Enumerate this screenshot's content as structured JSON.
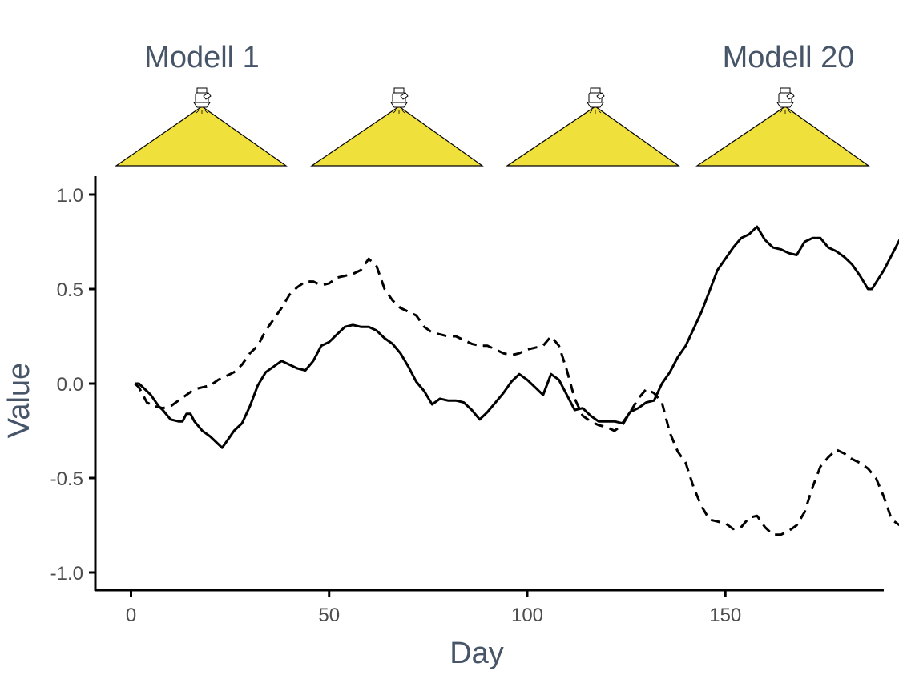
{
  "colors": {
    "axis": "#000000",
    "series": "#000000",
    "lamp_fill": "#F0E03C",
    "text": "#475569",
    "tick": "#4d4d4d"
  },
  "header": {
    "model_labels": [
      "Modell 1",
      "Modell 20"
    ],
    "lamps": [
      {
        "icon": "lamp-icon"
      },
      {
        "icon": "lamp-icon"
      },
      {
        "icon": "lamp-icon"
      },
      {
        "icon": "lamp-icon"
      }
    ]
  },
  "chart_data": {
    "type": "line",
    "title": "",
    "xlabel": "Day",
    "ylabel": "Value",
    "xlim": [
      -9,
      190
    ],
    "ylim": [
      -1.09,
      1.09
    ],
    "xticks": [
      0,
      50,
      100,
      150
    ],
    "xtick_labels": [
      "0",
      "50",
      "100",
      "150"
    ],
    "yticks": [
      -1.0,
      -0.5,
      0.0,
      0.5,
      1.0
    ],
    "ytick_labels": [
      "-1.0",
      "-0.5",
      "0.0",
      "0.5",
      "1.0"
    ],
    "grid": false,
    "series": [
      {
        "name": "solid",
        "style": "solid",
        "points": [
          [
            1,
            0.0
          ],
          [
            2,
            0.0
          ],
          [
            4,
            -0.04
          ],
          [
            5,
            -0.06
          ],
          [
            7,
            -0.12
          ],
          [
            8,
            -0.14
          ],
          [
            10,
            -0.19
          ],
          [
            12,
            -0.2
          ],
          [
            13,
            -0.2
          ],
          [
            14,
            -0.16
          ],
          [
            15,
            -0.16
          ],
          [
            16,
            -0.2
          ],
          [
            18,
            -0.25
          ],
          [
            20,
            -0.28
          ],
          [
            22,
            -0.32
          ],
          [
            23,
            -0.34
          ],
          [
            24,
            -0.31
          ],
          [
            26,
            -0.25
          ],
          [
            28,
            -0.21
          ],
          [
            30,
            -0.12
          ],
          [
            32,
            -0.01
          ],
          [
            34,
            0.06
          ],
          [
            36,
            0.09
          ],
          [
            38,
            0.12
          ],
          [
            40,
            0.1
          ],
          [
            42,
            0.08
          ],
          [
            44,
            0.07
          ],
          [
            46,
            0.12
          ],
          [
            48,
            0.2
          ],
          [
            50,
            0.22
          ],
          [
            52,
            0.26
          ],
          [
            54,
            0.3
          ],
          [
            56,
            0.31
          ],
          [
            58,
            0.3
          ],
          [
            60,
            0.3
          ],
          [
            62,
            0.28
          ],
          [
            64,
            0.24
          ],
          [
            66,
            0.21
          ],
          [
            68,
            0.16
          ],
          [
            70,
            0.09
          ],
          [
            72,
            0.01
          ],
          [
            74,
            -0.04
          ],
          [
            76,
            -0.11
          ],
          [
            78,
            -0.08
          ],
          [
            80,
            -0.09
          ],
          [
            82,
            -0.09
          ],
          [
            84,
            -0.1
          ],
          [
            86,
            -0.14
          ],
          [
            88,
            -0.19
          ],
          [
            90,
            -0.15
          ],
          [
            92,
            -0.1
          ],
          [
            94,
            -0.05
          ],
          [
            96,
            0.01
          ],
          [
            98,
            0.05
          ],
          [
            100,
            0.02
          ],
          [
            102,
            -0.02
          ],
          [
            104,
            -0.06
          ],
          [
            106,
            0.05
          ],
          [
            108,
            0.02
          ],
          [
            110,
            -0.06
          ],
          [
            112,
            -0.14
          ],
          [
            114,
            -0.13
          ],
          [
            116,
            -0.17
          ],
          [
            118,
            -0.2
          ],
          [
            120,
            -0.2
          ],
          [
            122,
            -0.2
          ],
          [
            124,
            -0.21
          ],
          [
            126,
            -0.15
          ],
          [
            128,
            -0.13
          ],
          [
            130,
            -0.1
          ],
          [
            132,
            -0.09
          ],
          [
            134,
            0.0
          ],
          [
            136,
            0.06
          ],
          [
            138,
            0.14
          ],
          [
            140,
            0.2
          ],
          [
            142,
            0.29
          ],
          [
            144,
            0.38
          ],
          [
            146,
            0.49
          ],
          [
            148,
            0.6
          ],
          [
            150,
            0.66
          ],
          [
            152,
            0.72
          ],
          [
            154,
            0.77
          ],
          [
            156,
            0.79
          ],
          [
            158,
            0.83
          ],
          [
            160,
            0.76
          ],
          [
            162,
            0.72
          ],
          [
            164,
            0.71
          ],
          [
            166,
            0.69
          ],
          [
            168,
            0.68
          ],
          [
            170,
            0.75
          ],
          [
            172,
            0.77
          ],
          [
            174,
            0.77
          ],
          [
            176,
            0.72
          ],
          [
            178,
            0.7
          ],
          [
            180,
            0.67
          ],
          [
            182,
            0.63
          ],
          [
            184,
            0.57
          ],
          [
            186,
            0.5
          ],
          [
            187,
            0.5
          ],
          [
            190,
            0.6
          ],
          [
            194,
            0.76
          ]
        ]
      },
      {
        "name": "dashed",
        "style": "dashed",
        "points": [
          [
            1,
            0.0
          ],
          [
            2,
            -0.02
          ],
          [
            4,
            -0.1
          ],
          [
            6,
            -0.12
          ],
          [
            8,
            -0.13
          ],
          [
            10,
            -0.12
          ],
          [
            12,
            -0.09
          ],
          [
            14,
            -0.06
          ],
          [
            16,
            -0.03
          ],
          [
            18,
            -0.02
          ],
          [
            20,
            -0.01
          ],
          [
            22,
            0.02
          ],
          [
            24,
            0.04
          ],
          [
            26,
            0.06
          ],
          [
            28,
            0.1
          ],
          [
            30,
            0.16
          ],
          [
            32,
            0.2
          ],
          [
            34,
            0.28
          ],
          [
            36,
            0.34
          ],
          [
            38,
            0.4
          ],
          [
            40,
            0.47
          ],
          [
            42,
            0.51
          ],
          [
            44,
            0.54
          ],
          [
            46,
            0.54
          ],
          [
            48,
            0.52
          ],
          [
            50,
            0.53
          ],
          [
            52,
            0.56
          ],
          [
            54,
            0.57
          ],
          [
            56,
            0.58
          ],
          [
            58,
            0.6
          ],
          [
            60,
            0.66
          ],
          [
            62,
            0.62
          ],
          [
            64,
            0.5
          ],
          [
            66,
            0.44
          ],
          [
            68,
            0.4
          ],
          [
            70,
            0.38
          ],
          [
            72,
            0.36
          ],
          [
            74,
            0.3
          ],
          [
            76,
            0.27
          ],
          [
            78,
            0.26
          ],
          [
            80,
            0.25
          ],
          [
            82,
            0.25
          ],
          [
            84,
            0.23
          ],
          [
            86,
            0.21
          ],
          [
            88,
            0.2
          ],
          [
            90,
            0.2
          ],
          [
            92,
            0.18
          ],
          [
            94,
            0.16
          ],
          [
            96,
            0.15
          ],
          [
            98,
            0.16
          ],
          [
            100,
            0.18
          ],
          [
            102,
            0.19
          ],
          [
            104,
            0.2
          ],
          [
            106,
            0.25
          ],
          [
            108,
            0.2
          ],
          [
            110,
            0.07
          ],
          [
            112,
            -0.08
          ],
          [
            114,
            -0.17
          ],
          [
            116,
            -0.2
          ],
          [
            118,
            -0.22
          ],
          [
            120,
            -0.23
          ],
          [
            122,
            -0.25
          ],
          [
            124,
            -0.22
          ],
          [
            126,
            -0.15
          ],
          [
            128,
            -0.08
          ],
          [
            130,
            -0.03
          ],
          [
            132,
            -0.05
          ],
          [
            134,
            -0.1
          ],
          [
            136,
            -0.26
          ],
          [
            138,
            -0.36
          ],
          [
            140,
            -0.42
          ],
          [
            142,
            -0.55
          ],
          [
            144,
            -0.65
          ],
          [
            146,
            -0.72
          ],
          [
            148,
            -0.73
          ],
          [
            150,
            -0.74
          ],
          [
            152,
            -0.77
          ],
          [
            154,
            -0.76
          ],
          [
            156,
            -0.71
          ],
          [
            158,
            -0.7
          ],
          [
            160,
            -0.76
          ],
          [
            162,
            -0.8
          ],
          [
            164,
            -0.8
          ],
          [
            166,
            -0.78
          ],
          [
            168,
            -0.75
          ],
          [
            170,
            -0.68
          ],
          [
            172,
            -0.55
          ],
          [
            174,
            -0.44
          ],
          [
            176,
            -0.39
          ],
          [
            178,
            -0.35
          ],
          [
            180,
            -0.37
          ],
          [
            182,
            -0.4
          ],
          [
            184,
            -0.42
          ],
          [
            186,
            -0.45
          ],
          [
            188,
            -0.5
          ],
          [
            190,
            -0.6
          ],
          [
            192,
            -0.72
          ],
          [
            194,
            -0.75
          ],
          [
            196,
            -0.7
          ]
        ]
      }
    ]
  }
}
